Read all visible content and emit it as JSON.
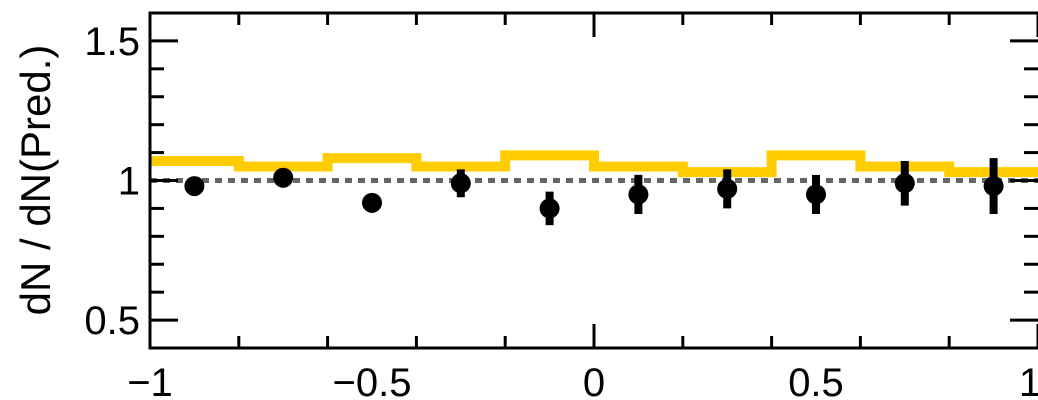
{
  "chart_data": {
    "type": "scatter",
    "title": "",
    "xlabel": "",
    "ylabel": "dN / dN(Pred.)",
    "xlim": [
      -1,
      1
    ],
    "ylim": [
      0.4,
      1.6
    ],
    "x_ticks": [
      {
        "value": -1,
        "label": "−1"
      },
      {
        "value": -0.5,
        "label": "−0.5"
      },
      {
        "value": 0,
        "label": "0"
      },
      {
        "value": 0.5,
        "label": "0.5"
      },
      {
        "value": 1,
        "label": "1"
      }
    ],
    "y_ticks": [
      {
        "value": 0.5,
        "label": "0.5"
      },
      {
        "value": 1,
        "label": "1"
      },
      {
        "value": 1.5,
        "label": "1.5"
      }
    ],
    "reference_line": {
      "y": 1.0,
      "style": "dotted",
      "color": "#666666"
    },
    "series": [
      {
        "kind": "step",
        "color": "#ffcc00",
        "bin_edges": [
          -1,
          -0.8,
          -0.6,
          -0.4,
          -0.2,
          0,
          0.2,
          0.4,
          0.6,
          0.8,
          1
        ],
        "values": [
          1.07,
          1.05,
          1.08,
          1.05,
          1.09,
          1.05,
          1.03,
          1.09,
          1.05,
          1.03
        ]
      },
      {
        "kind": "points",
        "color": "#000000",
        "x": [
          -0.9,
          -0.7,
          -0.5,
          -0.3,
          -0.1,
          0.1,
          0.3,
          0.5,
          0.7,
          0.9
        ],
        "y": [
          0.98,
          1.01,
          0.92,
          0.99,
          0.9,
          0.95,
          0.97,
          0.95,
          0.99,
          0.98
        ],
        "err": [
          0.0,
          0.0,
          0.0,
          0.05,
          0.06,
          0.07,
          0.07,
          0.07,
          0.08,
          0.1
        ]
      }
    ]
  }
}
